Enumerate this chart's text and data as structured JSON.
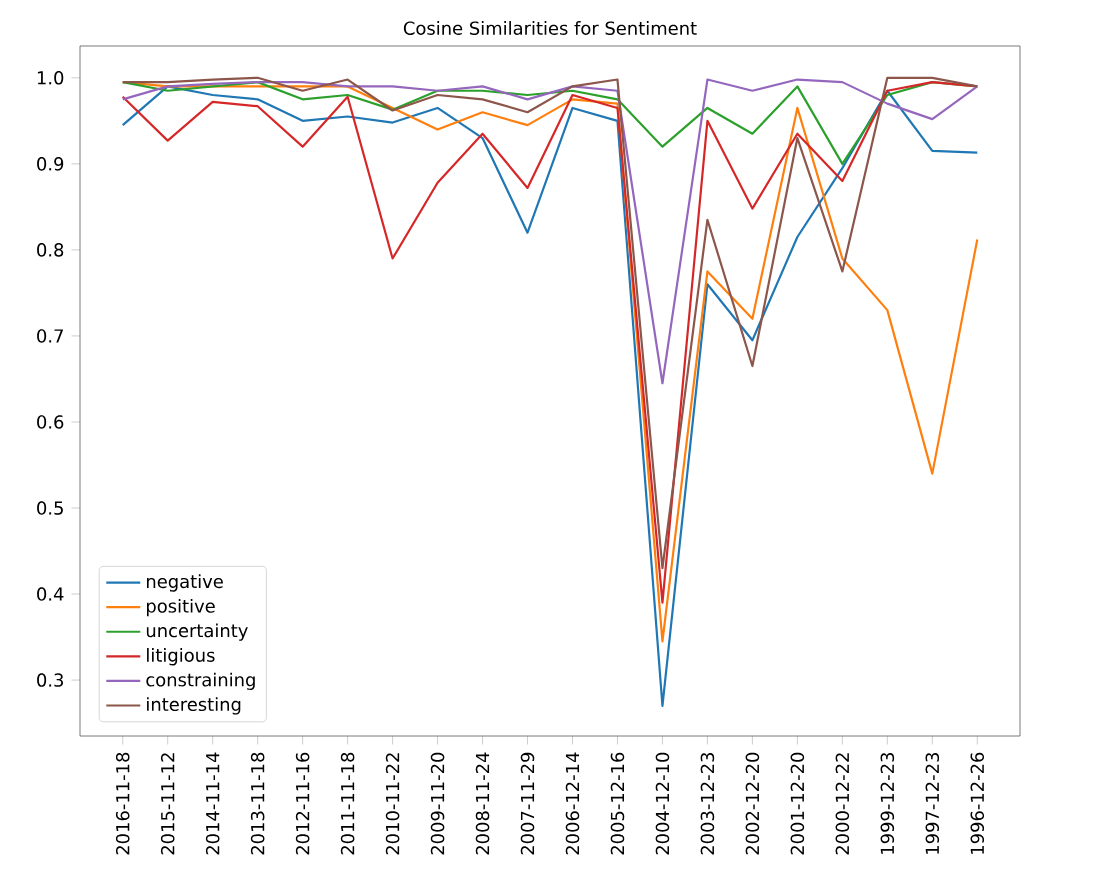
{
  "chart_data": {
    "type": "line",
    "title": "Cosine Similarities for Sentiment",
    "categories": [
      "2016-11-18",
      "2015-11-12",
      "2014-11-14",
      "2013-11-18",
      "2012-11-16",
      "2011-11-18",
      "2010-11-22",
      "2009-11-20",
      "2008-11-24",
      "2007-11-29",
      "2006-12-14",
      "2005-12-16",
      "2004-12-10",
      "2003-12-23",
      "2002-12-20",
      "2001-12-20",
      "2000-12-22",
      "1999-12-23",
      "1997-12-23",
      "1996-12-26"
    ],
    "series": [
      {
        "name": "negative",
        "color": "#1f77b4",
        "values": [
          0.945,
          0.99,
          0.98,
          0.975,
          0.95,
          0.955,
          0.948,
          0.965,
          0.93,
          0.82,
          0.965,
          0.95,
          0.27,
          0.76,
          0.695,
          0.815,
          0.895,
          0.985,
          0.915,
          0.913
        ]
      },
      {
        "name": "positive",
        "color": "#ff7f0e",
        "values": [
          0.995,
          0.99,
          0.99,
          0.99,
          0.99,
          0.99,
          0.965,
          0.94,
          0.96,
          0.945,
          0.975,
          0.97,
          0.345,
          0.775,
          0.72,
          0.965,
          0.79,
          0.73,
          0.54,
          0.812
        ]
      },
      {
        "name": "uncertainty",
        "color": "#2ca02c",
        "values": [
          0.995,
          0.985,
          0.99,
          0.995,
          0.975,
          0.98,
          0.963,
          0.985,
          0.985,
          0.98,
          0.985,
          0.975,
          0.92,
          0.965,
          0.935,
          0.99,
          0.9,
          0.98,
          0.995,
          0.99
        ]
      },
      {
        "name": "litigious",
        "color": "#d62728",
        "values": [
          0.978,
          0.927,
          0.972,
          0.967,
          0.92,
          0.978,
          0.79,
          0.878,
          0.935,
          0.872,
          0.98,
          0.965,
          0.39,
          0.95,
          0.848,
          0.935,
          0.88,
          0.985,
          0.995,
          0.99
        ]
      },
      {
        "name": "constraining",
        "color": "#9467bd",
        "values": [
          0.975,
          0.99,
          0.993,
          0.995,
          0.995,
          0.99,
          0.99,
          0.985,
          0.99,
          0.975,
          0.99,
          0.985,
          0.645,
          0.998,
          0.985,
          0.998,
          0.995,
          0.97,
          0.952,
          0.99
        ]
      },
      {
        "name": "interesting",
        "color": "#8c564b",
        "values": [
          0.995,
          0.995,
          0.998,
          1.0,
          0.985,
          0.998,
          0.962,
          0.98,
          0.975,
          0.96,
          0.99,
          0.998,
          0.43,
          0.835,
          0.665,
          0.93,
          0.775,
          1.0,
          1.0,
          0.99
        ]
      }
    ],
    "ylim": [
      0.235,
      1.037
    ],
    "yticks": [
      0.3,
      0.4,
      0.5,
      0.6,
      0.7,
      0.8,
      0.9,
      {
        "value": 1.0,
        "label": "1.0"
      }
    ],
    "legend": "bottom left",
    "grid": false,
    "marker": "none",
    "line_style": "solid"
  }
}
